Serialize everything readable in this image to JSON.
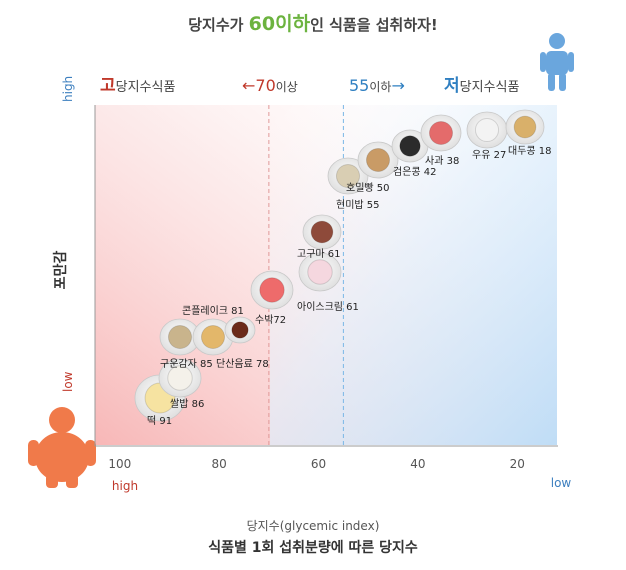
{
  "header": {
    "headline_pre": "당지수가 ",
    "headline_num": "60이하",
    "headline_post": "인 식품을 섭취하자!"
  },
  "zones": {
    "high_gi_mark": "고",
    "high_gi_rest": "당지수식품",
    "threshold_70_arrow": "←",
    "threshold_70_num": "70",
    "threshold_70_text": "이상",
    "threshold_55_num": "55",
    "threshold_55_text": "이하",
    "threshold_55_arrow": "→",
    "low_gi_mark": "저",
    "low_gi_rest": "당지수식품"
  },
  "colors": {
    "accent_green": "#6cb33f",
    "high_zone_red": "#c0392b",
    "low_zone_blue": "#2f7fc1",
    "threshold_70_line": "#e09a9a",
    "threshold_55_line": "#7ab7e6",
    "axis_blue_text": "#3d7fbf",
    "axis_red_text": "#c0392b"
  },
  "chart_data": {
    "type": "scatter",
    "title": "식품별 1회 섭취분량에 따른 당지수",
    "xlabel": "당지수(glycemic index)",
    "ylabel": "포만감",
    "x_axis_reversed": true,
    "xlim": [
      105,
      12
    ],
    "x_ticks": [
      100,
      80,
      60,
      40,
      20
    ],
    "x_end_labels": {
      "left": "high",
      "right": "low"
    },
    "y_end_labels": {
      "top": "high",
      "bottom": "low"
    },
    "thresholds": [
      70,
      55
    ],
    "foods": [
      {
        "name": "떡",
        "gi": 91,
        "label": "떡 91",
        "icon": "rice-cake-icon"
      },
      {
        "name": "쌀밥",
        "gi": 86,
        "label": "쌀밥 86",
        "icon": "white-rice-icon"
      },
      {
        "name": "구운감자",
        "gi": 85,
        "label": "구운감자 85",
        "icon": "baked-potato-icon"
      },
      {
        "name": "콘플레이크",
        "gi": 81,
        "label": "콘플레이크 81",
        "icon": "cornflakes-icon"
      },
      {
        "name": "단산음료",
        "gi": 78,
        "label": "단산음료 78",
        "icon": "soda-glass-icon"
      },
      {
        "name": "수박",
        "gi": 72,
        "label": "수박72",
        "icon": "watermelon-icon"
      },
      {
        "name": "아이스크림",
        "gi": 61,
        "label": "아이스크림 61",
        "icon": "ice-cream-icon"
      },
      {
        "name": "고구마",
        "gi": 61,
        "label": "고구마 61",
        "icon": "sweet-potato-icon"
      },
      {
        "name": "현미밥",
        "gi": 55,
        "label": "현미밥 55",
        "icon": "brown-rice-icon"
      },
      {
        "name": "호밀빵",
        "gi": 50,
        "label": "호밀빵 50",
        "icon": "rye-bread-icon"
      },
      {
        "name": "검은콩",
        "gi": 42,
        "label": "검은콩 42",
        "icon": "black-beans-icon"
      },
      {
        "name": "사과",
        "gi": 38,
        "label": "사과 38",
        "icon": "apple-icon"
      },
      {
        "name": "우유",
        "gi": 27,
        "label": "우유 27",
        "icon": "milk-glass-icon"
      },
      {
        "name": "대두콩",
        "gi": 18,
        "label": "대두콩 18",
        "icon": "soybeans-icon"
      }
    ]
  }
}
